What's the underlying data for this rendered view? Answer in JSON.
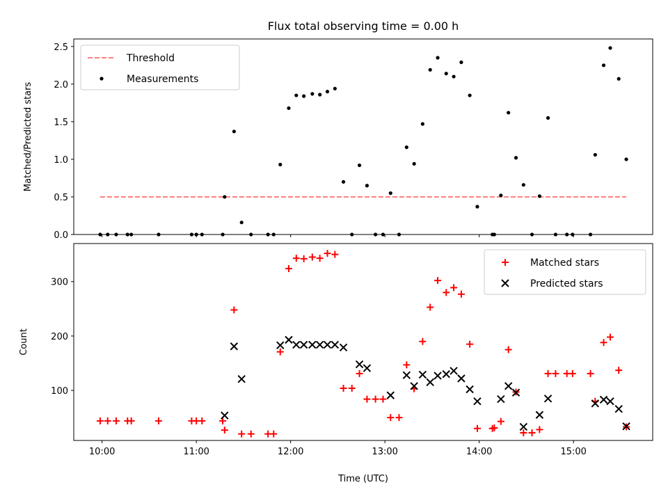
{
  "chart_data": {
    "type": "scatter",
    "title": "Flux total observing time = 0.00 h",
    "xlabel": "Time (UTC)",
    "x_ticks": [
      "10:00",
      "11:00",
      "12:00",
      "13:00",
      "14:00",
      "15:00"
    ],
    "x_range_hours": [
      9.7,
      15.84
    ],
    "panels": [
      {
        "id": "top",
        "ylabel": "Matched/Predicted stars",
        "ylim": [
          0,
          2.6
        ],
        "yticks": [
          "0.0",
          "0.5",
          "1.0",
          "1.5",
          "2.0",
          "2.5"
        ],
        "legend_position": "upper-left",
        "series": [
          {
            "name": "Threshold",
            "kind": "dashed-line",
            "color": "#ff7f7f",
            "x": [
              9.98,
              15.56
            ],
            "y": [
              0.5,
              0.5
            ]
          },
          {
            "name": "Measurements",
            "kind": "dot",
            "color": "#000000",
            "x": [
              9.98,
              10.06,
              10.15,
              10.27,
              10.31,
              10.6,
              10.95,
              11.0,
              11.06,
              11.28,
              11.3,
              11.4,
              11.48,
              11.58,
              11.76,
              11.82,
              11.89,
              11.98,
              12.06,
              12.14,
              12.23,
              12.31,
              12.39,
              12.47,
              12.56,
              12.65,
              12.73,
              12.81,
              12.9,
              12.98,
              13.06,
              13.15,
              13.23,
              13.31,
              13.4,
              13.48,
              13.56,
              13.65,
              13.73,
              13.81,
              13.9,
              13.98,
              14.14,
              14.16,
              14.23,
              14.31,
              14.39,
              14.47,
              14.56,
              14.64,
              14.73,
              14.81,
              14.93,
              14.99,
              15.18,
              15.23,
              15.32,
              15.39,
              15.48,
              15.56
            ],
            "y": [
              0.0,
              0.0,
              0.0,
              0.0,
              0.0,
              0.0,
              0.0,
              0.0,
              0.0,
              0.0,
              0.5,
              1.37,
              0.16,
              0.0,
              0.0,
              0.0,
              0.93,
              1.68,
              1.85,
              1.84,
              1.87,
              1.86,
              1.9,
              1.94,
              0.7,
              0.0,
              0.92,
              0.65,
              0.0,
              0.0,
              0.55,
              0.0,
              1.16,
              0.94,
              1.47,
              2.19,
              2.35,
              2.14,
              2.1,
              2.29,
              1.85,
              0.37,
              0.0,
              0.0,
              0.52,
              1.62,
              1.02,
              0.66,
              0.0,
              0.51,
              1.55,
              0.0,
              0.0,
              0.0,
              0.0,
              1.06,
              2.25,
              2.48,
              2.07,
              1.0
            ]
          }
        ]
      },
      {
        "id": "bottom",
        "ylabel": "Count",
        "ylim": [
          8,
          370
        ],
        "yticks": [
          "100",
          "200",
          "300"
        ],
        "legend_position": "upper-right",
        "series": [
          {
            "name": "Matched stars",
            "kind": "plus",
            "color": "#ff0000",
            "x": [
              9.98,
              10.06,
              10.15,
              10.27,
              10.31,
              10.6,
              10.95,
              11.0,
              11.06,
              11.28,
              11.3,
              11.4,
              11.48,
              11.58,
              11.76,
              11.82,
              11.89,
              11.98,
              12.06,
              12.14,
              12.23,
              12.31,
              12.39,
              12.47,
              12.56,
              12.65,
              12.73,
              12.81,
              12.9,
              12.98,
              13.06,
              13.15,
              13.23,
              13.31,
              13.4,
              13.48,
              13.56,
              13.65,
              13.73,
              13.81,
              13.9,
              13.98,
              14.14,
              14.16,
              14.23,
              14.31,
              14.39,
              14.47,
              14.56,
              14.64,
              14.73,
              14.81,
              14.93,
              14.99,
              15.18,
              15.23,
              15.32,
              15.39,
              15.48,
              15.56
            ],
            "y": [
              44,
              44,
              44,
              44,
              44,
              44,
              44,
              44,
              44,
              44,
              27,
              248,
              20,
              20,
              20,
              20,
              171,
              324,
              343,
              342,
              345,
              343,
              352,
              350,
              104,
              104,
              131,
              84,
              84,
              84,
              50,
              50,
              147,
              103,
              190,
              253,
              302,
              280,
              289,
              277,
              185,
              30,
              30,
              31,
              43,
              175,
              97,
              22,
              22,
              28,
              131,
              131,
              131,
              131,
              131,
              80,
              188,
              198,
              137,
              33
            ]
          },
          {
            "name": "Predicted stars",
            "kind": "cross",
            "color": "#000000",
            "x": [
              11.3,
              11.4,
              11.48,
              11.89,
              11.98,
              12.06,
              12.14,
              12.23,
              12.31,
              12.39,
              12.47,
              12.56,
              12.73,
              12.81,
              13.06,
              13.23,
              13.31,
              13.4,
              13.48,
              13.56,
              13.65,
              13.73,
              13.81,
              13.9,
              13.98,
              14.23,
              14.31,
              14.39,
              14.47,
              14.64,
              14.73,
              15.23,
              15.32,
              15.39,
              15.48,
              15.56
            ],
            "y": [
              54,
              181,
              121,
              183,
              193,
              184,
              184,
              184,
              184,
              184,
              184,
              179,
              148,
              141,
              91,
              128,
              108,
              129,
              115,
              127,
              130,
              136,
              122,
              102,
              80,
              84,
              108,
              96,
              33,
              55,
              85,
              76,
              83,
              80,
              66,
              34
            ]
          }
        ]
      }
    ]
  }
}
